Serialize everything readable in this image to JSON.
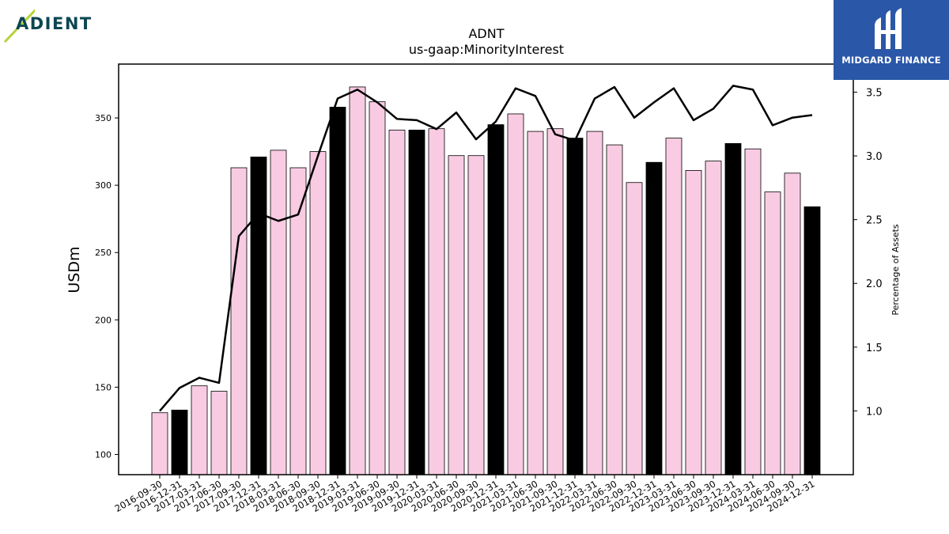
{
  "header": {
    "company_logo_text": "ADIENT",
    "watermark_text": "MIDGARD FINANCE"
  },
  "colors": {
    "bar_regular": "#f9cbe2",
    "bar_year_end": "#000000",
    "line": "#000000",
    "logo_blue": "#2a57a8",
    "logo_teal": "#0d4651",
    "logo_green": "#b6d33a"
  },
  "chart_data": {
    "type": "bar",
    "title": "ADNT",
    "subtitle": "us-gaap:MinorityInterest",
    "ylabel": "USDm",
    "ylabel_right": "Percentage of Assets",
    "ylim": [
      85,
      390
    ],
    "ylim_right": [
      0.5,
      3.72
    ],
    "yticks": [
      100,
      150,
      200,
      250,
      300,
      350
    ],
    "yticks_right": [
      1.0,
      1.5,
      2.0,
      2.5,
      3.0,
      3.5
    ],
    "categories": [
      "2016-09-30",
      "2016-12-31",
      "2017-03-31",
      "2017-06-30",
      "2017-09-30",
      "2017-12-31",
      "2018-03-31",
      "2018-06-30",
      "2018-09-30",
      "2018-12-31",
      "2019-03-31",
      "2019-06-30",
      "2019-09-30",
      "2019-12-31",
      "2020-03-31",
      "2020-06-30",
      "2020-09-30",
      "2020-12-31",
      "2021-03-31",
      "2021-06-30",
      "2021-09-30",
      "2021-12-31",
      "2022-03-31",
      "2022-06-30",
      "2022-09-30",
      "2022-12-31",
      "2023-03-31",
      "2023-06-30",
      "2023-09-30",
      "2023-12-31",
      "2024-03-31",
      "2024-06-30",
      "2024-09-30",
      "2024-12-31"
    ],
    "series": [
      {
        "type": "bar",
        "axis": "left",
        "values": [
          131,
          133,
          151,
          147,
          313,
          321,
          326,
          313,
          325,
          358,
          373,
          362,
          341,
          341,
          342,
          322,
          322,
          345,
          353,
          340,
          342,
          335,
          340,
          330,
          302,
          317,
          335,
          311,
          318,
          331,
          327,
          295,
          309,
          284
        ],
        "highlight": [
          false,
          true,
          false,
          false,
          false,
          true,
          false,
          false,
          false,
          true,
          false,
          false,
          false,
          true,
          false,
          false,
          false,
          true,
          false,
          false,
          false,
          true,
          false,
          false,
          false,
          true,
          false,
          false,
          false,
          true,
          false,
          false,
          false,
          true
        ]
      },
      {
        "type": "line",
        "axis": "right",
        "values": [
          1.0,
          1.18,
          1.26,
          1.22,
          2.37,
          2.55,
          2.49,
          2.54,
          3.0,
          3.45,
          3.52,
          3.42,
          3.29,
          3.28,
          3.21,
          3.34,
          3.13,
          3.27,
          3.53,
          3.47,
          3.17,
          3.12,
          3.45,
          3.54,
          3.3,
          3.42,
          3.53,
          3.28,
          3.37,
          3.55,
          3.52,
          3.24,
          3.3,
          3.32
        ]
      }
    ],
    "grid": false,
    "legend": "none"
  }
}
